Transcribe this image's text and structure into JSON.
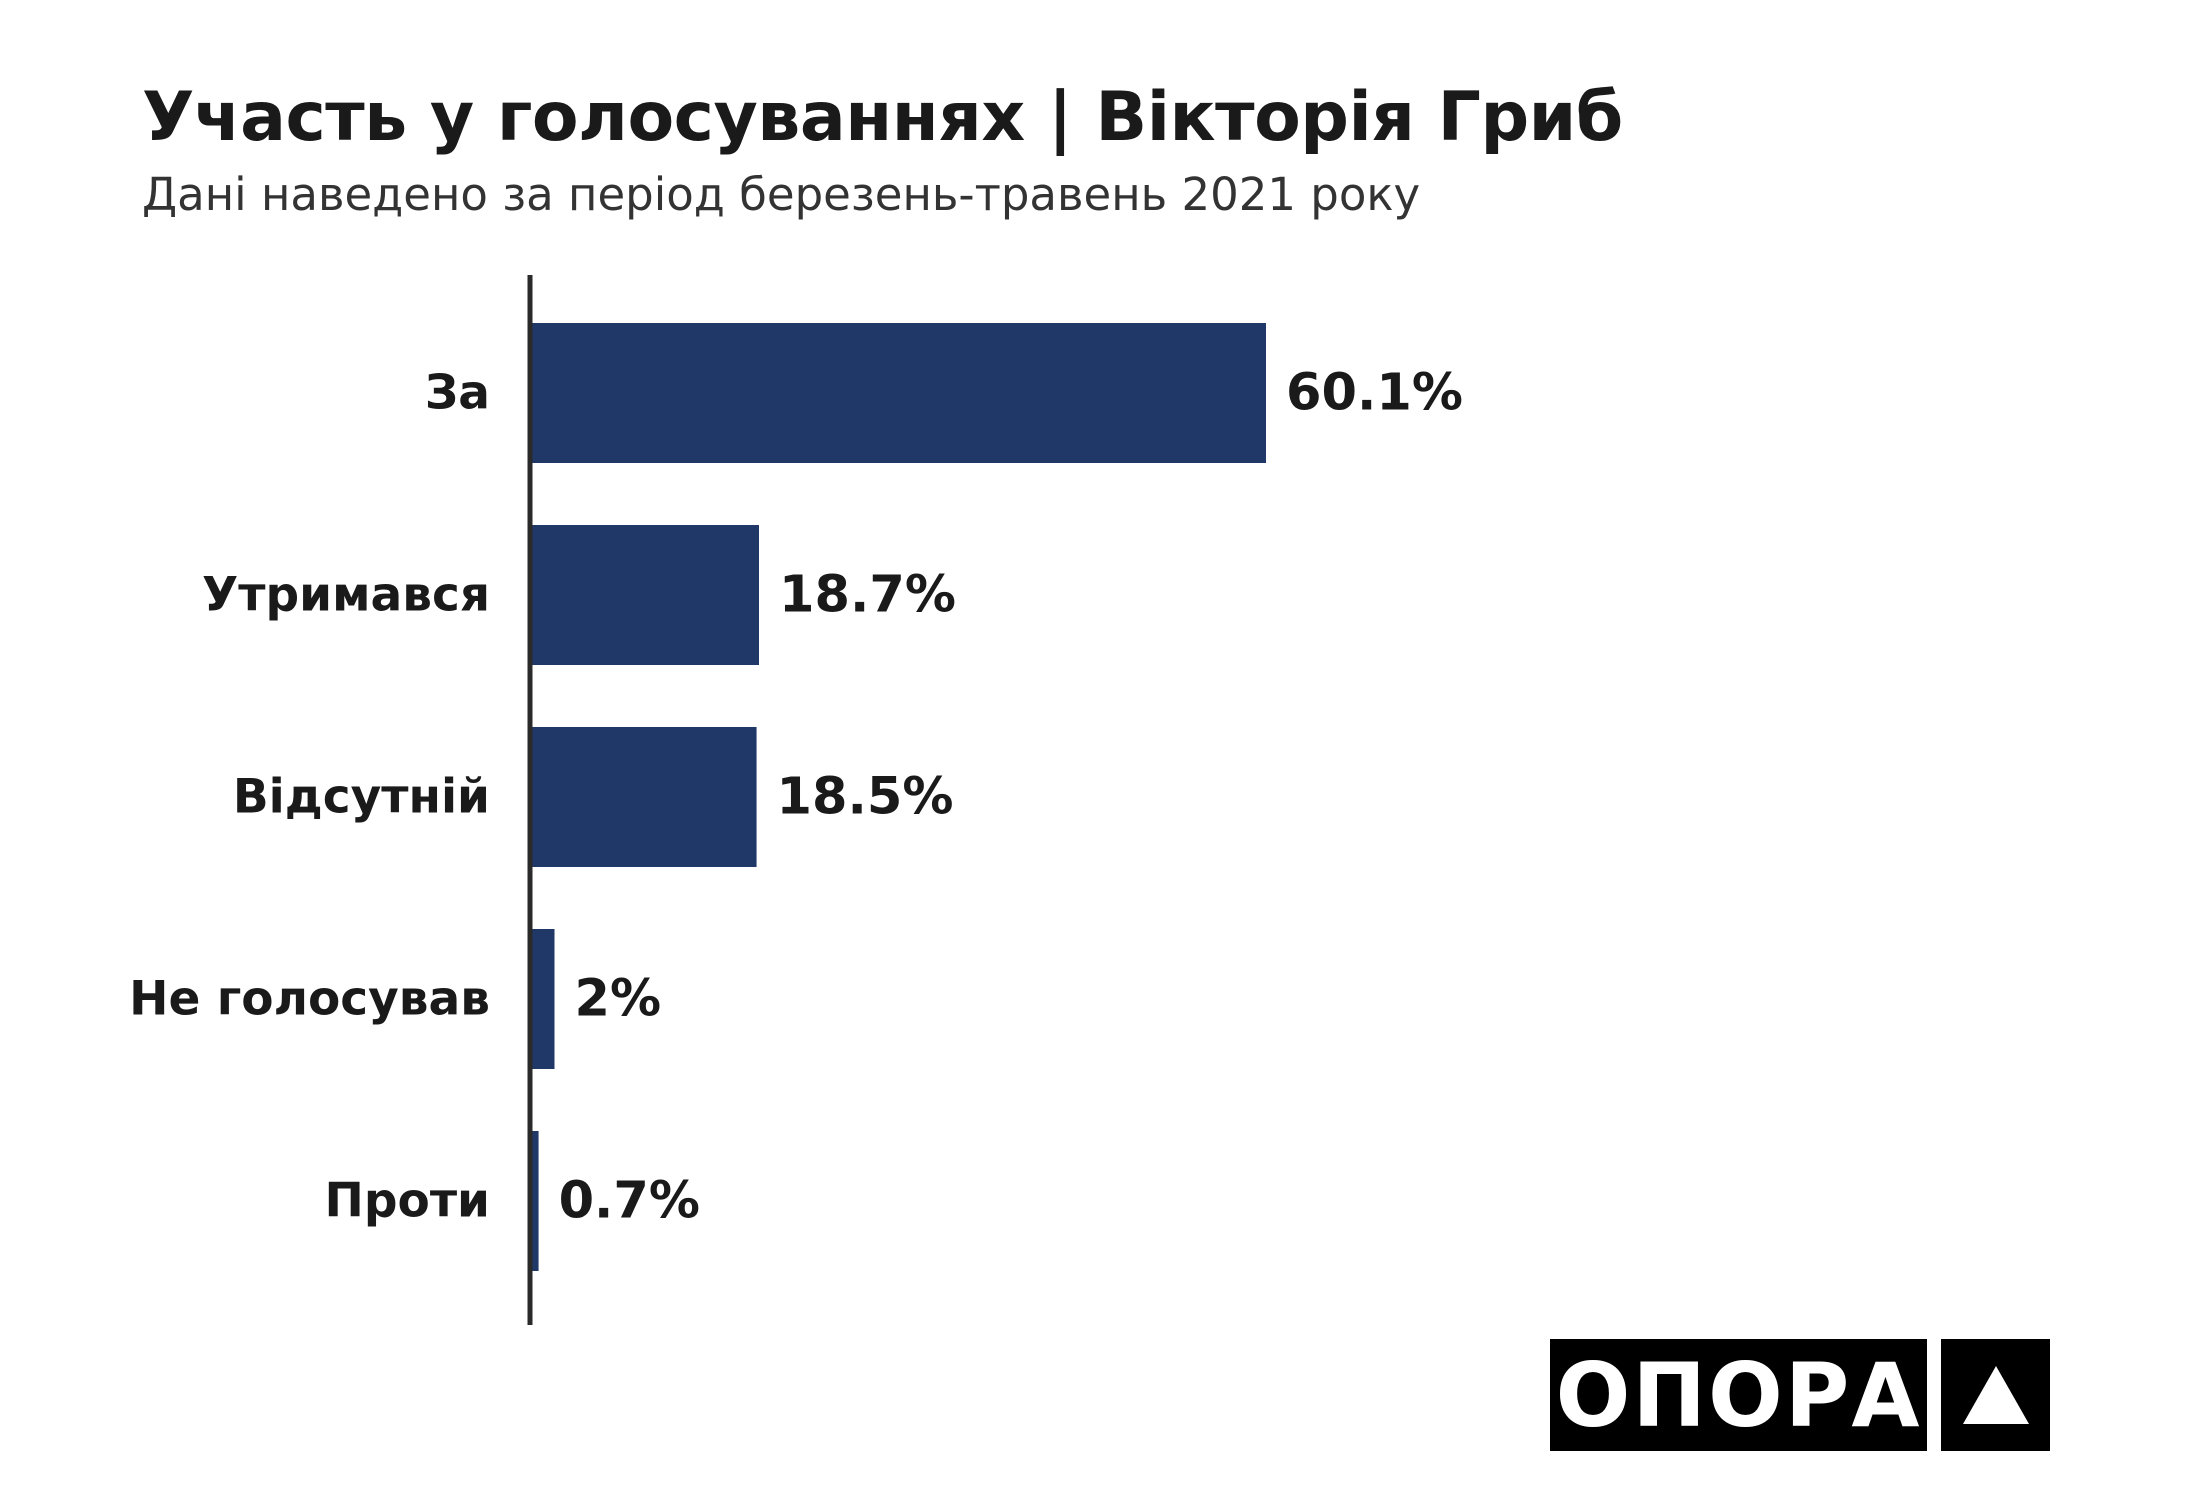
{
  "header": {
    "title": "Участь у голосуваннях | Вікторія Гриб",
    "subtitle": "Дані наведено за період березень-травень 2021 року"
  },
  "chart_data": {
    "type": "bar",
    "orientation": "horizontal",
    "title": "Участь у голосуваннях | Вікторія Гриб",
    "subtitle": "Дані наведено за період березень-травень 2021 року",
    "categories": [
      "За",
      "Утримався",
      "Відсутній",
      "Не голосував",
      "Проти"
    ],
    "values": [
      60.1,
      18.7,
      18.5,
      2,
      0.7
    ],
    "value_labels": [
      "60.1%",
      "18.7%",
      "18.5%",
      "2%",
      "0.7%"
    ],
    "xlim": [
      0,
      60.1
    ],
    "bar_color": "#1f3868",
    "axis_color": "#2a2a2a",
    "grid": false,
    "legend": "none"
  },
  "logo": {
    "word": "ОПОРА",
    "mark_icon": "triangle-icon",
    "background": "#000000",
    "foreground": "#ffffff"
  }
}
